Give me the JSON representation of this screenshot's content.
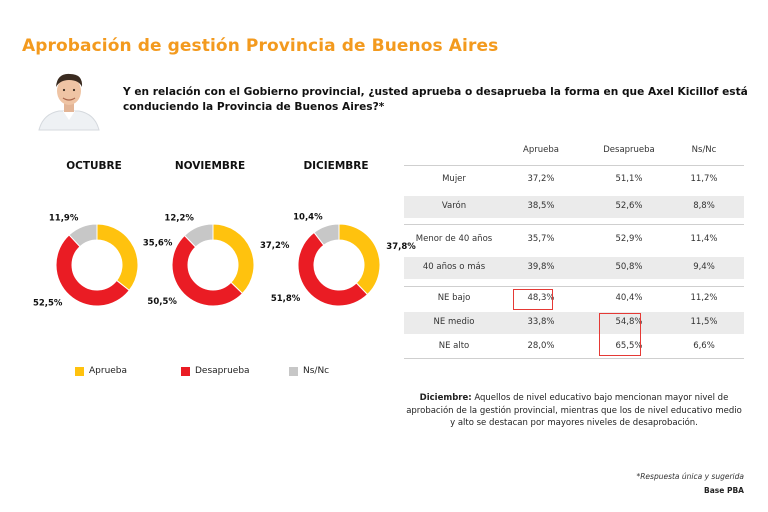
{
  "header": {
    "title": "Aprobación de gestión Provincia de Buenos Aires",
    "question": "Y en relación con el Gobierno provincial, ¿usted aprueba o desaprueba la forma en que Axel Kicillof está conduciendo la Provincia de Buenos Aires?*"
  },
  "colors": {
    "aprueba": "#ffc20e",
    "desaprueba": "#ea1c24",
    "nsnc": "#c7c7c7",
    "title": "#f39a1e",
    "highlight": "#e53935"
  },
  "chart_data": [
    {
      "type": "pie",
      "title": "OCTUBRE",
      "categories": [
        "Aprueba",
        "Desaprueba",
        "Ns/Nc"
      ],
      "values": [
        35.6,
        52.5,
        11.9
      ],
      "labels": [
        "35,6%",
        "52,5%",
        "11,9%"
      ]
    },
    {
      "type": "pie",
      "title": "NOVIEMBRE",
      "categories": [
        "Aprueba",
        "Desaprueba",
        "Ns/Nc"
      ],
      "values": [
        37.2,
        50.5,
        12.2
      ],
      "labels": [
        "37,2%",
        "50,5%",
        "12,2%"
      ]
    },
    {
      "type": "pie",
      "title": "DICIEMBRE",
      "categories": [
        "Aprueba",
        "Desaprueba",
        "Ns/Nc"
      ],
      "values": [
        37.8,
        51.8,
        10.4
      ],
      "labels": [
        "37,8%",
        "51,8%",
        "10,4%"
      ]
    },
    {
      "type": "table",
      "columns": [
        "",
        "Aprueba",
        "Desaprueba",
        "Ns/Nc"
      ],
      "rows": [
        [
          "Mujer",
          "37,2%",
          "51,1%",
          "11,7%"
        ],
        [
          "Varón",
          "38,5%",
          "52,6%",
          "8,8%"
        ],
        [
          "Menor de 40 años",
          "35,7%",
          "52,9%",
          "11,4%"
        ],
        [
          "40 años o más",
          "39,8%",
          "50,8%",
          "9,4%"
        ],
        [
          "NE bajo",
          "48,3%",
          "40,4%",
          "11,2%"
        ],
        [
          "NE medio",
          "33,8%",
          "54,8%",
          "11,5%"
        ],
        [
          "NE alto",
          "28,0%",
          "65,5%",
          "6,6%"
        ]
      ]
    }
  ],
  "legend": [
    {
      "label": "Aprueba",
      "color": "#ffc20e"
    },
    {
      "label": "Desaprueba",
      "color": "#ea1c24"
    },
    {
      "label": "Ns/Nc",
      "color": "#c7c7c7"
    }
  ],
  "note": {
    "bold": "Diciembre:",
    "text": " Aquellos de nivel educativo bajo mencionan mayor nivel de aprobación de la gestión provincial, mientras que los de nivel educativo medio y alto se destacan por mayores niveles de desaprobación."
  },
  "footer": {
    "note": "*Respuesta única y sugerida",
    "base": "Base PBA"
  }
}
